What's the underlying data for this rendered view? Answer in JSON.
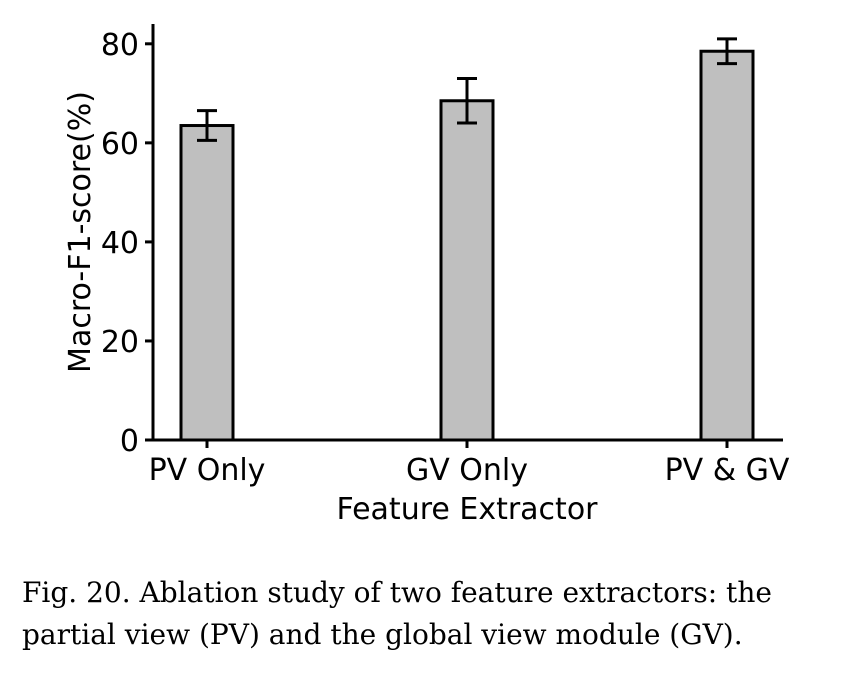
{
  "chart_data": {
    "type": "bar",
    "categories": [
      "PV Only",
      "GV Only",
      "PV & GV"
    ],
    "values": [
      63.5,
      68.5,
      78.5
    ],
    "errors": [
      3.0,
      4.5,
      2.5
    ],
    "xlabel": "Feature Extractor",
    "ylabel": "Macro-F1-score(%)",
    "ylim": [
      0,
      84
    ],
    "yticks": [
      0,
      20,
      40,
      60,
      80
    ],
    "grid": false,
    "bar_color": "#bfbfbf",
    "edge_color": "#000000"
  },
  "caption": "Fig. 20.  Ablation study of two feature extractors: the partial view (PV) and the global view module (GV)."
}
